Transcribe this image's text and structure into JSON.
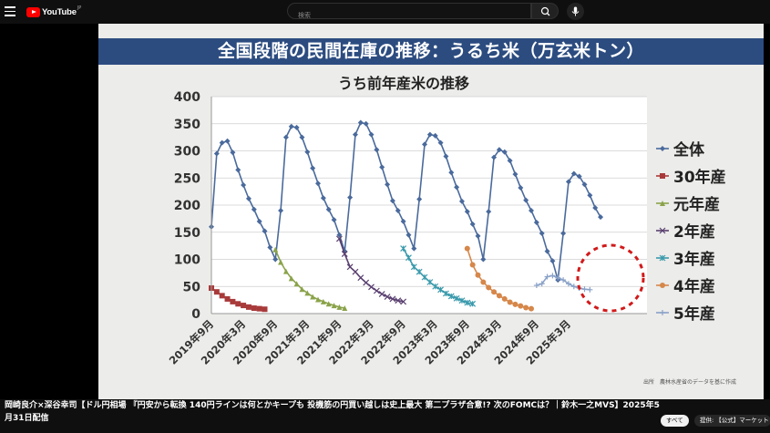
{
  "header": {
    "logo_text": "YouTube",
    "region": "JP",
    "search_placeholder": "検索"
  },
  "slide": {
    "banner": "全国段階の民間在庫の推移：うるち米（万玄米トン）",
    "source": "出所　農林水産省のデータを基に作成"
  },
  "video_title": "岡崎良介×深谷幸司【ドル円相場 『円安から転換 140円ラインは何とかキープも 投機筋の円買い越しは史上最大 第二プラザ合意!? 次のFOMCは？｜鈴木一之MVS】2025年5月31日配信",
  "chips": [
    "すべて",
    "提供: 【公式】マーケット"
  ],
  "chart_data": {
    "type": "line",
    "title": "うち前年産米の推移",
    "ylim": [
      0,
      400
    ],
    "yticks": [
      0,
      50,
      100,
      150,
      200,
      250,
      300,
      350,
      400
    ],
    "xticks": [
      "2019年9月",
      "2020年3月",
      "2020年9月",
      "2021年3月",
      "2021年9月",
      "2022年3月",
      "2022年9月",
      "2023年3月",
      "2023年9月",
      "2024年3月",
      "2024年9月",
      "2025年3月"
    ],
    "grid": true,
    "legend_position": "right",
    "series": [
      {
        "name": "全体",
        "color": "#4a6a9c",
        "marker": "diamond",
        "x_start": 0,
        "values": [
          160,
          295,
          315,
          318,
          297,
          265,
          237,
          212,
          192,
          170,
          152,
          122,
          100,
          190,
          325,
          345,
          343,
          325,
          298,
          268,
          240,
          213,
          192,
          173,
          145,
          115,
          214,
          330,
          352,
          350,
          330,
          302,
          270,
          238,
          208,
          190,
          170,
          145,
          120,
          211,
          312,
          330,
          328,
          315,
          290,
          260,
          233,
          207,
          188,
          165,
          143,
          100,
          188,
          288,
          302,
          298,
          282,
          257,
          232,
          209,
          190,
          168,
          148,
          115,
          97,
          62,
          148,
          243,
          258,
          253,
          238,
          218,
          195,
          178
        ]
      },
      {
        "name": "30年産",
        "color": "#a83a3a",
        "marker": "square",
        "x_start": 0,
        "values": [
          47,
          40,
          33,
          27,
          22,
          18,
          15,
          12,
          10,
          9,
          8
        ]
      },
      {
        "name": "元年産",
        "color": "#8aa34a",
        "marker": "triangle",
        "x_start": 12,
        "values": [
          118,
          95,
          78,
          65,
          55,
          45,
          38,
          31,
          26,
          22,
          18,
          15,
          12,
          10
        ]
      },
      {
        "name": "2年産",
        "color": "#5a4070",
        "marker": "x",
        "x_start": 24,
        "values": [
          138,
          110,
          86,
          77,
          66,
          57,
          49,
          42,
          36,
          31,
          27,
          24,
          22
        ]
      },
      {
        "name": "3年産",
        "color": "#3a9aac",
        "marker": "star",
        "x_start": 36,
        "values": [
          120,
          103,
          86,
          77,
          67,
          58,
          50,
          44,
          37,
          32,
          28,
          24,
          20,
          18
        ]
      },
      {
        "name": "4年産",
        "color": "#d6874a",
        "marker": "circle",
        "x_start": 48,
        "values": [
          120,
          90,
          71,
          58,
          48,
          40,
          33,
          27,
          21,
          17,
          14,
          11,
          9
        ]
      },
      {
        "name": "5年産",
        "color": "#8aa2c8",
        "marker": "plus",
        "x_start": 61,
        "values": [
          52,
          55,
          68,
          70,
          66,
          62,
          55,
          50,
          47,
          45,
          44
        ]
      }
    ]
  }
}
